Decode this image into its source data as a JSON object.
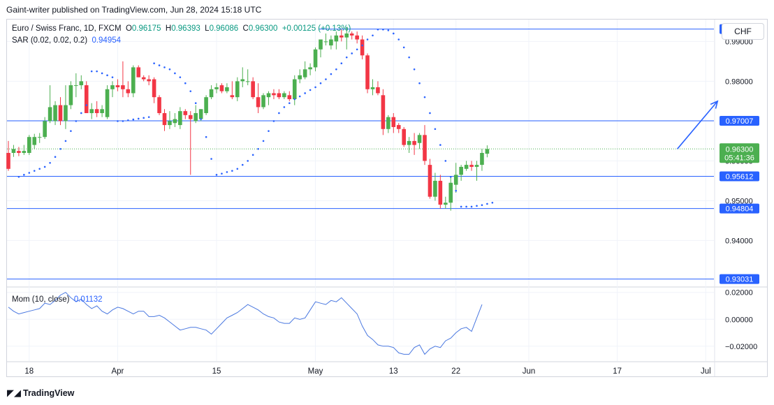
{
  "header": {
    "caption": "Gaint-writer published on TradingView.com, Jun 28, 2024 15:18 UTC"
  },
  "legend": {
    "symbol": "Euro / Swiss Franc, 1D, FXCM",
    "o_label": "O",
    "o_value": "0.96175",
    "h_label": "H",
    "h_value": "0.96393",
    "l_label": "L",
    "l_value": "0.96086",
    "c_label": "C",
    "c_value": "0.96300",
    "change": "+0.00125 (+0.13%)",
    "sar_label": "SAR (0.02, 0.02, 0.2)",
    "sar_value": "0.94954",
    "mom_label": "Mom (10, close)",
    "mom_value": "0.01132"
  },
  "currency_button": "CHF",
  "footer": {
    "brand": "TradingView"
  },
  "colors": {
    "up": "#4caf50",
    "down": "#f23645",
    "line": "#2962ff",
    "mom": "#4a78e0",
    "grid": "#f0f3fa",
    "axis_text": "#131722"
  },
  "chart_data": [
    {
      "type": "candlestick",
      "ylim": [
        0.9285,
        0.9955
      ],
      "y_ticks": [
        0.94,
        0.95,
        0.96,
        0.97,
        0.98,
        0.99
      ],
      "y_tick_labels": [
        "0.94000",
        "0.95000",
        "0.96000",
        "0.97000",
        "0.98000",
        "0.99000"
      ],
      "x_ticks": [
        {
          "i": 4,
          "label": "18"
        },
        {
          "i": 21,
          "label": "Apr"
        },
        {
          "i": 40,
          "label": "15"
        },
        {
          "i": 59,
          "label": "May"
        },
        {
          "i": 74,
          "label": "13"
        },
        {
          "i": 86,
          "label": "22"
        },
        {
          "i": 100,
          "label": "Jun"
        },
        {
          "i": 117,
          "label": "17"
        },
        {
          "i": 134,
          "label": "Jul"
        }
      ],
      "candles": [
        [
          0.962,
          0.965,
          0.9575,
          0.958
        ],
        [
          0.962,
          0.964,
          0.961,
          0.963
        ],
        [
          0.9625,
          0.9635,
          0.9612,
          0.962
        ],
        [
          0.962,
          0.964,
          0.9615,
          0.9625
        ],
        [
          0.962,
          0.9665,
          0.9615,
          0.966
        ],
        [
          0.964,
          0.9668,
          0.963,
          0.966
        ],
        [
          0.966,
          0.967,
          0.9645,
          0.966
        ],
        [
          0.966,
          0.971,
          0.9655,
          0.97
        ],
        [
          0.97,
          0.979,
          0.9695,
          0.9735
        ],
        [
          0.97,
          0.975,
          0.969,
          0.974
        ],
        [
          0.974,
          0.976,
          0.969,
          0.97
        ],
        [
          0.97,
          0.979,
          0.968,
          0.974
        ],
        [
          0.974,
          0.98,
          0.973,
          0.979
        ],
        [
          0.979,
          0.982,
          0.976,
          0.979
        ],
        [
          0.979,
          0.9815,
          0.978,
          0.98
        ],
        [
          0.979,
          0.98,
          0.972,
          0.972
        ],
        [
          0.972,
          0.9745,
          0.9705,
          0.973
        ],
        [
          0.973,
          0.975,
          0.971,
          0.972
        ],
        [
          0.972,
          0.974,
          0.971,
          0.973
        ],
        [
          0.971,
          0.979,
          0.9705,
          0.978
        ],
        [
          0.978,
          0.98,
          0.976,
          0.979
        ],
        [
          0.979,
          0.9805,
          0.9775,
          0.9785
        ],
        [
          0.979,
          0.985,
          0.976,
          0.978
        ],
        [
          0.978,
          0.98,
          0.976,
          0.977
        ],
        [
          0.977,
          0.984,
          0.976,
          0.9835
        ],
        [
          0.9835,
          0.984,
          0.981,
          0.981
        ],
        [
          0.981,
          0.9815,
          0.98,
          0.9805
        ],
        [
          0.9805,
          0.9815,
          0.979,
          0.98
        ],
        [
          0.9805,
          0.981,
          0.9745,
          0.976
        ],
        [
          0.976,
          0.9765,
          0.9715,
          0.972
        ],
        [
          0.972,
          0.973,
          0.9675,
          0.969
        ],
        [
          0.969,
          0.9725,
          0.968,
          0.97
        ],
        [
          0.9695,
          0.972,
          0.9685,
          0.9705
        ],
        [
          0.969,
          0.9735,
          0.968,
          0.9725
        ],
        [
          0.9725,
          0.973,
          0.9705,
          0.9715
        ],
        [
          0.9715,
          0.9725,
          0.9565,
          0.9705
        ],
        [
          0.97,
          0.974,
          0.9695,
          0.972
        ],
        [
          0.9705,
          0.973,
          0.97,
          0.973
        ],
        [
          0.972,
          0.9765,
          0.9715,
          0.976
        ],
        [
          0.976,
          0.979,
          0.9755,
          0.978
        ],
        [
          0.978,
          0.9795,
          0.977,
          0.9785
        ],
        [
          0.979,
          0.9795,
          0.977,
          0.9775
        ],
        [
          0.9775,
          0.9795,
          0.977,
          0.9785
        ],
        [
          0.9765,
          0.98,
          0.9755,
          0.976
        ],
        [
          0.976,
          0.981,
          0.975,
          0.98
        ],
        [
          0.98,
          0.9835,
          0.9785,
          0.9805
        ],
        [
          0.98,
          0.983,
          0.979,
          0.98
        ],
        [
          0.98,
          0.981,
          0.9755,
          0.976
        ],
        [
          0.976,
          0.9795,
          0.972,
          0.9735
        ],
        [
          0.9735,
          0.977,
          0.973,
          0.9765
        ],
        [
          0.976,
          0.9775,
          0.974,
          0.977
        ],
        [
          0.977,
          0.978,
          0.9755,
          0.9765
        ],
        [
          0.977,
          0.978,
          0.9755,
          0.976
        ],
        [
          0.976,
          0.9775,
          0.9755,
          0.977
        ],
        [
          0.9765,
          0.9775,
          0.975,
          0.9755
        ],
        [
          0.9755,
          0.9815,
          0.974,
          0.9805
        ],
        [
          0.9805,
          0.983,
          0.9795,
          0.9815
        ],
        [
          0.981,
          0.985,
          0.9805,
          0.983
        ],
        [
          0.983,
          0.9845,
          0.9815,
          0.9835
        ],
        [
          0.9835,
          0.9885,
          0.9825,
          0.988
        ],
        [
          0.988,
          0.9905,
          0.986,
          0.9905
        ],
        [
          0.99,
          0.992,
          0.989,
          0.99
        ],
        [
          0.989,
          0.9915,
          0.988,
          0.9905
        ],
        [
          0.99,
          0.9925,
          0.988,
          0.9915
        ],
        [
          0.9915,
          0.993,
          0.99,
          0.991
        ],
        [
          0.991,
          0.9935,
          0.988,
          0.992
        ],
        [
          0.992,
          0.9925,
          0.9905,
          0.9915
        ],
        [
          0.9915,
          0.9925,
          0.9895,
          0.9905
        ],
        [
          0.9905,
          0.9915,
          0.9855,
          0.9865
        ],
        [
          0.9865,
          0.987,
          0.977,
          0.978
        ],
        [
          0.978,
          0.9805,
          0.9765,
          0.9785
        ],
        [
          0.9785,
          0.98,
          0.9765,
          0.977
        ],
        [
          0.9765,
          0.978,
          0.9665,
          0.968
        ],
        [
          0.968,
          0.9715,
          0.967,
          0.971
        ],
        [
          0.971,
          0.972,
          0.967,
          0.9685
        ],
        [
          0.969,
          0.9695,
          0.967,
          0.968
        ],
        [
          0.968,
          0.9685,
          0.9635,
          0.964
        ],
        [
          0.964,
          0.966,
          0.962,
          0.965
        ],
        [
          0.965,
          0.967,
          0.9615,
          0.964
        ],
        [
          0.9645,
          0.967,
          0.963,
          0.9665
        ],
        [
          0.9665,
          0.969,
          0.959,
          0.96
        ],
        [
          0.959,
          0.9605,
          0.9505,
          0.951
        ],
        [
          0.951,
          0.957,
          0.95,
          0.955
        ],
        [
          0.955,
          0.9565,
          0.948,
          0.949
        ],
        [
          0.949,
          0.951,
          0.948,
          0.9495
        ],
        [
          0.9495,
          0.956,
          0.9475,
          0.9545
        ],
        [
          0.954,
          0.9595,
          0.952,
          0.9565
        ],
        [
          0.9565,
          0.959,
          0.955,
          0.9585
        ],
        [
          0.958,
          0.96,
          0.9575,
          0.959
        ],
        [
          0.959,
          0.96,
          0.9575,
          0.9585
        ],
        [
          0.9585,
          0.96,
          0.955,
          0.959
        ],
        [
          0.959,
          0.963,
          0.9575,
          0.962
        ],
        [
          0.9618,
          0.9639,
          0.9609,
          0.963
        ]
      ],
      "sar": [
        0.956,
        0.9565,
        0.957,
        0.9575,
        0.958,
        0.9585,
        0.9595,
        0.961,
        0.963,
        0.965,
        0.9675,
        0.97,
        0.972,
        0.974,
        0.9825,
        0.9825,
        0.982,
        0.9815,
        0.981,
        0.97,
        0.97,
        0.9702,
        0.9704,
        0.9706,
        0.9708,
        0.971,
        0.9845,
        0.984,
        0.9835,
        0.983,
        0.982,
        0.981,
        0.9795,
        0.9775,
        0.9745,
        0.9705,
        0.966,
        0.9605,
        0.9565,
        0.9568,
        0.9572,
        0.9575,
        0.958,
        0.959,
        0.96,
        0.9615,
        0.963,
        0.965,
        0.9675,
        0.97,
        0.972,
        0.9735,
        0.9745,
        0.9755,
        0.9762,
        0.977,
        0.9778,
        0.9785,
        0.9795,
        0.9805,
        0.9818,
        0.983,
        0.9845,
        0.986,
        0.987,
        0.988,
        0.989,
        0.9905,
        0.9915,
        0.993,
        0.993,
        0.9928,
        0.992,
        0.9905,
        0.9885,
        0.986,
        0.983,
        0.9795,
        0.976,
        0.972,
        0.968,
        0.964,
        0.96,
        0.956,
        0.9525,
        0.9485,
        0.9485,
        0.9485,
        0.9487,
        0.9489,
        0.9492,
        0.9495
      ],
      "sar_start": 2,
      "levels": [
        {
          "value": 0.99312,
          "label": "0.99312",
          "from": 60
        },
        {
          "value": 0.97007,
          "label": "0.97007",
          "from": 0
        },
        {
          "value": 0.95612,
          "label": "0.95612",
          "from": 0
        },
        {
          "value": 0.94804,
          "label": "0.94804",
          "from": 0
        },
        {
          "value": 0.93031,
          "label": "0.93031",
          "from": 0
        }
      ],
      "last_price": {
        "value": 0.963,
        "label": "0.96300",
        "countdown": "05:41:36"
      },
      "arrow": {
        "from": [
          128,
          0.963
        ],
        "to": [
          136,
          0.975
        ]
      }
    },
    {
      "type": "line",
      "name": "Mom (10, close)",
      "ylim": [
        -0.031,
        0.0235
      ],
      "y_ticks": [
        0.02,
        0.0,
        -0.02
      ],
      "y_tick_labels": [
        "0.02000",
        "0.00000",
        "−0.02000"
      ],
      "values": [
        0.009,
        0.006,
        0.004,
        0.005,
        0.006,
        0.007,
        0.008,
        0.012,
        0.011,
        0.014,
        0.018,
        0.02,
        0.016,
        0.013,
        0.015,
        0.011,
        0.008,
        0.01,
        0.006,
        0.004,
        0.007,
        0.009,
        0.008,
        0.006,
        0.004,
        0.006,
        0.006,
        0.002,
        0.002,
        0.003,
        0.001,
        -0.002,
        -0.005,
        -0.008,
        -0.007,
        -0.006,
        -0.006,
        -0.007,
        -0.008,
        -0.011,
        -0.007,
        -0.003,
        0.001,
        0.003,
        0.005,
        0.008,
        0.011,
        0.009,
        0.007,
        0.004,
        0.002,
        0.001,
        -0.002,
        -0.003,
        -0.003,
        0.001,
        0.0,
        0.001,
        0.007,
        0.013,
        0.012,
        0.011,
        0.014,
        0.013,
        0.016,
        0.012,
        0.008,
        0.004,
        -0.005,
        -0.012,
        -0.015,
        -0.019,
        -0.02,
        -0.02,
        -0.021,
        -0.025,
        -0.026,
        -0.026,
        -0.021,
        -0.019,
        -0.026,
        -0.022,
        -0.02,
        -0.021,
        -0.016,
        -0.014,
        -0.01,
        -0.007,
        -0.006,
        -0.009,
        0.001,
        0.011
      ]
    }
  ]
}
